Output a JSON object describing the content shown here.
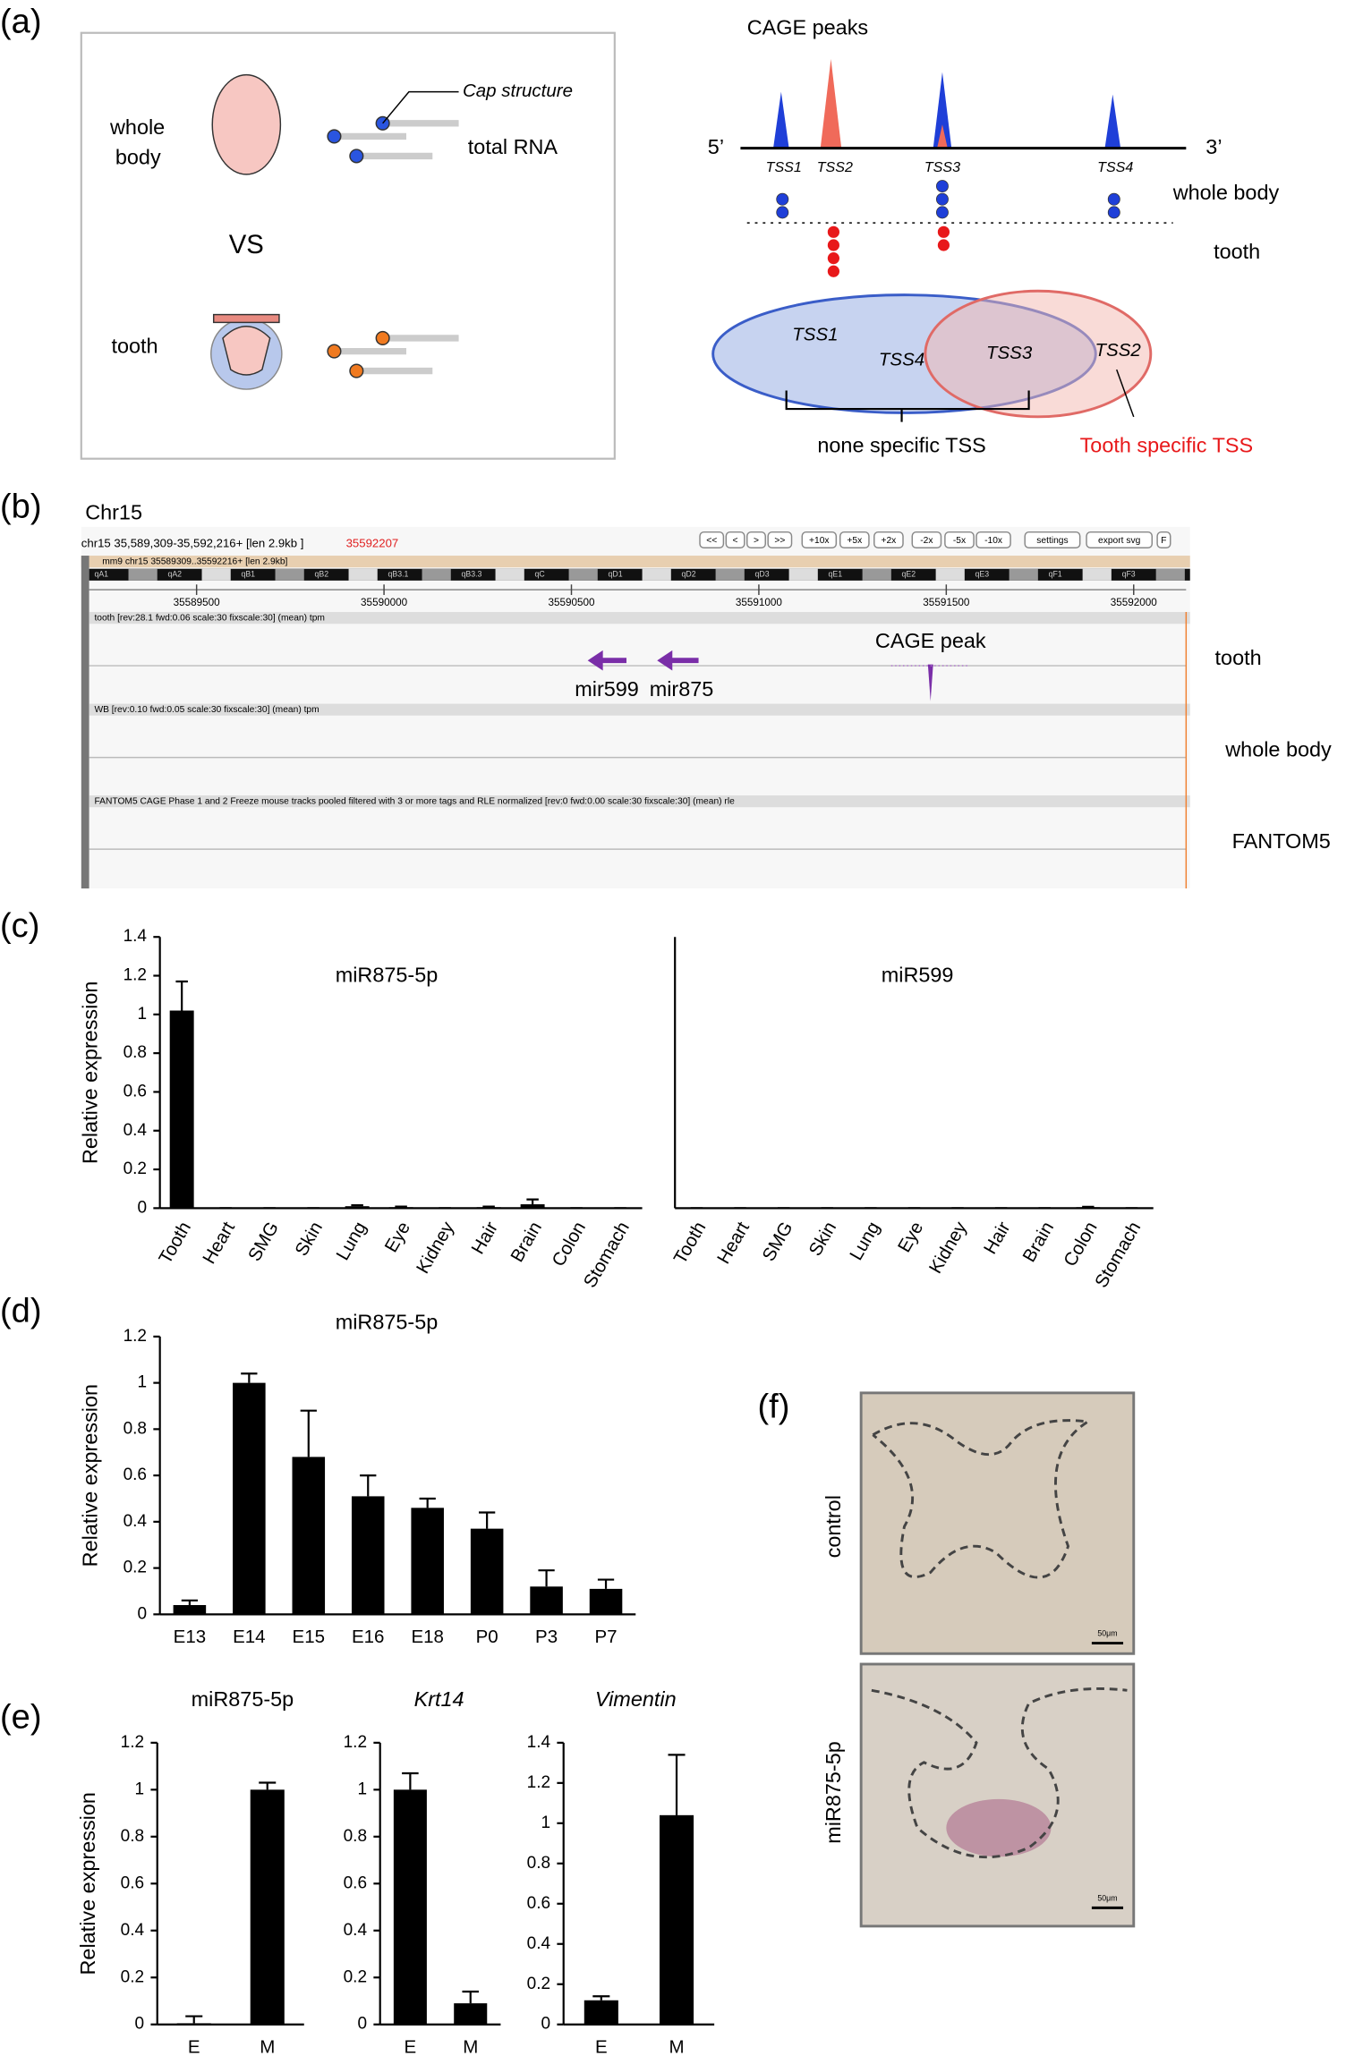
{
  "panel_labels": [
    "(a)",
    "(b)",
    "(c)",
    "(d)",
    "(e)",
    "(f)"
  ],
  "diagram": {
    "left": {
      "whole_body": [
        "whole",
        "body"
      ],
      "vs": "VS",
      "tooth": "tooth",
      "cap": "Cap structure",
      "total_rna": "total RNA"
    },
    "right": {
      "title": "CAGE peaks",
      "five": "5’",
      "three": "3’",
      "tss": [
        "TSS1",
        "TSS2",
        "TSS3",
        "TSS4"
      ],
      "whole_body": "whole body",
      "tooth": "tooth",
      "venn": [
        "TSS1",
        "TSS4",
        "TSS3",
        "TSS2"
      ],
      "none_specific": "none specific TSS",
      "tooth_specific": "Tooth specific TSS"
    }
  },
  "browser": {
    "chrom": "Chr15",
    "location": "chr15 35,589,309-35,592,216+ [len 2.9kb ]",
    "location_red": "35592207",
    "buttons": [
      "<<",
      "<",
      ">",
      ">>",
      "+10x",
      "+5x",
      "+2x",
      "-2x",
      "-5x",
      "-10x",
      "settings",
      "export svg",
      "F"
    ],
    "ideogram_title": "mm9 chr15 35589309..35592216+ [len 2.9kb]",
    "bands": [
      "qA1",
      "qA2",
      "qB1",
      "qB2",
      "qB3.1",
      "qB3.3",
      "qC",
      "qD1",
      "qD2",
      "qD3",
      "qE1",
      "qE2",
      "qE3",
      "qF1",
      "qF3"
    ],
    "coords": [
      "35589500",
      "35590000",
      "35590500",
      "35591000",
      "35591500",
      "35592000"
    ],
    "tracks": [
      {
        "header": "tooth [rev:28.1 fwd:0.06 scale:30 fixscale:30] (mean) tpm",
        "label": "tooth"
      },
      {
        "header": "WB [rev:0.10 fwd:0.05 scale:30 fixscale:30] (mean) tpm",
        "label": "whole body"
      },
      {
        "header": "FANTOM5 CAGE Phase 1 and 2 Freeze mouse tracks pooled filtered with 3 or more tags and RLE normalized [rev:0 fwd:0.00 scale:30 fixscale:30] (mean) rle",
        "label": "FANTOM5"
      }
    ],
    "peak_label": "CAGE peak",
    "genes": [
      "mir599",
      "mir875"
    ]
  },
  "images": {
    "labels": [
      "control",
      "miR875-5p"
    ],
    "scale": "50μm"
  },
  "chart_data": [
    {
      "type": "bar",
      "title": "miR875-5p",
      "y_label": "Relative expression",
      "color": "#000000",
      "categories": [
        "Tooth",
        "Heart",
        "SMG",
        "Skin",
        "Lung",
        "Eye",
        "Kidney",
        "Hair",
        "Brain",
        "Colon",
        "Stomach"
      ],
      "values": [
        1.02,
        0,
        0,
        0,
        0.01,
        0.005,
        0,
        0.005,
        0.02,
        0,
        0
      ],
      "errors": [
        0.15,
        0,
        0,
        0,
        0.005,
        0.003,
        0,
        0.003,
        0.025,
        0,
        0
      ],
      "ylim": [
        0,
        1.4
      ],
      "yticks": [
        0,
        0.2,
        0.4,
        0.6,
        0.8,
        1,
        1.2,
        1.4
      ]
    },
    {
      "type": "bar",
      "title": "miR599",
      "color": "#000000",
      "categories": [
        "Tooth",
        "Heart",
        "SMG",
        "Skin",
        "Lung",
        "Eye",
        "Kidney",
        "Hair",
        "Brain",
        "Colon",
        "Stomach"
      ],
      "values": [
        0,
        0,
        0,
        0,
        0,
        0,
        0,
        0,
        0,
        0.005,
        0
      ],
      "errors": [
        0,
        0,
        0,
        0,
        0,
        0,
        0,
        0,
        0,
        0.002,
        0
      ],
      "ylim": [
        0,
        1.4
      ]
    },
    {
      "type": "bar",
      "title": "miR875-5p",
      "y_label": "Relative expression",
      "color": "#000000",
      "categories": [
        "E13",
        "E14",
        "E15",
        "E16",
        "E18",
        "P0",
        "P3",
        "P7"
      ],
      "values": [
        0.04,
        1.0,
        0.68,
        0.51,
        0.46,
        0.37,
        0.12,
        0.11
      ],
      "errors": [
        0.02,
        0.04,
        0.2,
        0.09,
        0.04,
        0.07,
        0.07,
        0.04
      ],
      "ylim": [
        0,
        1.2
      ],
      "yticks": [
        0,
        0.2,
        0.4,
        0.6,
        0.8,
        1,
        1.2
      ]
    },
    {
      "type": "bar",
      "title": "miR875-5p",
      "y_label": "Relative expression",
      "color": "#000000",
      "categories": [
        "E",
        "M"
      ],
      "values": [
        0.005,
        1.0
      ],
      "errors": [
        0.03,
        0.03
      ],
      "ylim": [
        0,
        1.2
      ],
      "yticks": [
        0,
        0.2,
        0.4,
        0.6,
        0.8,
        1,
        1.2
      ]
    },
    {
      "type": "bar",
      "title": "Krt14",
      "title_italic": true,
      "color": "#000000",
      "categories": [
        "E",
        "M"
      ],
      "values": [
        1.0,
        0.09
      ],
      "errors": [
        0.07,
        0.05
      ],
      "ylim": [
        0,
        1.2
      ],
      "yticks": [
        0,
        0.2,
        0.4,
        0.6,
        0.8,
        1,
        1.2
      ]
    },
    {
      "type": "bar",
      "title": "Vimentin",
      "title_italic": true,
      "color": "#000000",
      "categories": [
        "E",
        "M"
      ],
      "values": [
        0.12,
        1.04
      ],
      "errors": [
        0.02,
        0.3
      ],
      "ylim": [
        0,
        1.4
      ],
      "yticks": [
        0,
        0.2,
        0.4,
        0.6,
        0.8,
        1,
        1.2,
        1.4
      ]
    }
  ]
}
